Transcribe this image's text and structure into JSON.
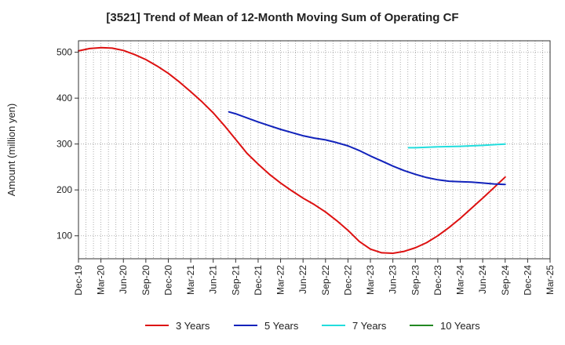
{
  "chart_data": {
    "type": "line",
    "title": "[3521]  Trend of Mean of 12-Month Moving Sum of Operating CF",
    "xlabel": "",
    "ylabel": "Amount (million yen)",
    "ylim": [
      50,
      525
    ],
    "yticks": [
      100,
      200,
      300,
      400,
      500
    ],
    "ytick_labels": [
      "100",
      "200",
      "300",
      "400",
      "500"
    ],
    "x_categories": [
      "Dec-19",
      "Mar-20",
      "Jun-20",
      "Sep-20",
      "Dec-20",
      "Mar-21",
      "Jun-21",
      "Sep-21",
      "Dec-21",
      "Mar-22",
      "Jun-22",
      "Sep-22",
      "Dec-22",
      "Mar-23",
      "Jun-23",
      "Sep-23",
      "Dec-23",
      "Mar-24",
      "Jun-24",
      "Sep-24",
      "Dec-24",
      "Mar-25"
    ],
    "grid": true,
    "legend_position": "bottom",
    "series": [
      {
        "name": "3 Years",
        "color": "#dd1111",
        "x": [
          0,
          0.5,
          1,
          1.5,
          2,
          2.5,
          3,
          3.5,
          4,
          4.5,
          5,
          5.5,
          6,
          6.5,
          7,
          7.5,
          8,
          8.5,
          9,
          9.5,
          10,
          10.5,
          11,
          11.5,
          12,
          12.5,
          13,
          13.5,
          14,
          14.5,
          15,
          15.5,
          16,
          16.5,
          17,
          17.5,
          18,
          18.5,
          19
        ],
        "values": [
          503,
          508,
          510,
          509,
          504,
          495,
          484,
          470,
          454,
          435,
          414,
          392,
          368,
          340,
          310,
          280,
          256,
          234,
          215,
          198,
          182,
          168,
          152,
          133,
          112,
          88,
          71,
          63,
          62,
          66,
          74,
          85,
          100,
          118,
          138,
          160,
          182,
          205,
          228
        ]
      },
      {
        "name": "5 Years",
        "color": "#1122bb",
        "x": [
          6.7,
          7,
          7.5,
          8,
          8.5,
          9,
          9.5,
          10,
          10.5,
          11,
          11.5,
          12,
          12.5,
          13,
          13.5,
          14,
          14.5,
          15,
          15.5,
          16,
          16.5,
          17,
          17.5,
          18,
          18.5,
          19
        ],
        "values": [
          370,
          366,
          357,
          348,
          340,
          332,
          325,
          318,
          313,
          309,
          303,
          296,
          286,
          274,
          263,
          252,
          242,
          234,
          227,
          222,
          219,
          218,
          217,
          215,
          213,
          212
        ]
      },
      {
        "name": "7 Years",
        "color": "#22dddd",
        "x": [
          14.7,
          15,
          16,
          17,
          18,
          19
        ],
        "values": [
          292,
          292,
          294,
          295,
          297,
          300
        ]
      },
      {
        "name": "10 Years",
        "color": "#228822",
        "x": [],
        "values": []
      }
    ]
  }
}
